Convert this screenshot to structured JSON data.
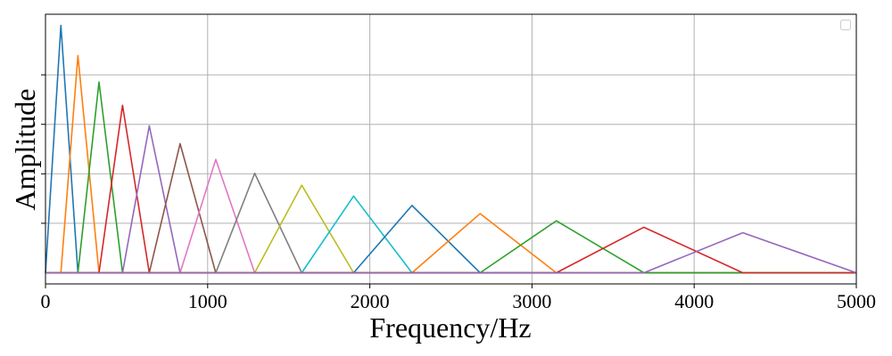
{
  "chart_data": {
    "type": "line",
    "title": "",
    "xlabel": "Frequency/Hz",
    "ylabel": "Amplitude",
    "xlim": [
      0,
      5000
    ],
    "ylim": [
      -0.045,
      1.045
    ],
    "xticks": [
      0,
      1000,
      2000,
      3000,
      4000,
      5000
    ],
    "yticks": [
      0.2,
      0.4,
      0.6,
      0.8
    ],
    "y_tick_labels_visible": false,
    "grid": true,
    "legend": {
      "placement": "top-right",
      "entries": []
    },
    "colors": [
      "#1f77b4",
      "#ff7f0e",
      "#2ca02c",
      "#d62728",
      "#9467bd",
      "#8c564b",
      "#e377c2",
      "#7f7f7f",
      "#bcbd22",
      "#17becf"
    ],
    "series": [
      {
        "x": [
          0,
          95,
          200,
          5000
        ],
        "y": [
          0,
          1.0,
          0,
          0
        ]
      },
      {
        "x": [
          0,
          95,
          200,
          330,
          5000
        ],
        "y": [
          0,
          0,
          0.878,
          0,
          0
        ]
      },
      {
        "x": [
          0,
          200,
          330,
          475,
          5000
        ],
        "y": [
          0,
          0,
          0.771,
          0,
          0
        ]
      },
      {
        "x": [
          0,
          330,
          475,
          640,
          5000
        ],
        "y": [
          0,
          0,
          0.677,
          0,
          0
        ]
      },
      {
        "x": [
          0,
          475,
          640,
          830,
          5000
        ],
        "y": [
          0,
          0,
          0.594,
          0,
          0
        ]
      },
      {
        "x": [
          0,
          640,
          830,
          1050,
          5000
        ],
        "y": [
          0,
          0,
          0.522,
          0,
          0
        ]
      },
      {
        "x": [
          0,
          830,
          1050,
          1290,
          5000
        ],
        "y": [
          0,
          0,
          0.458,
          0,
          0
        ]
      },
      {
        "x": [
          0,
          1050,
          1290,
          1580,
          5000
        ],
        "y": [
          0,
          0,
          0.402,
          0,
          0
        ]
      },
      {
        "x": [
          0,
          1290,
          1580,
          1900,
          5000
        ],
        "y": [
          0,
          0,
          0.354,
          0,
          0
        ]
      },
      {
        "x": [
          0,
          1580,
          1900,
          2260,
          5000
        ],
        "y": [
          0,
          0,
          0.31,
          0,
          0
        ]
      },
      {
        "x": [
          0,
          1900,
          2260,
          2680,
          5000
        ],
        "y": [
          0,
          0,
          0.272,
          0,
          0
        ]
      },
      {
        "x": [
          0,
          2260,
          2680,
          3150,
          5000
        ],
        "y": [
          0,
          0,
          0.239,
          0,
          0
        ]
      },
      {
        "x": [
          0,
          2680,
          3150,
          3690,
          5000
        ],
        "y": [
          0,
          0,
          0.21,
          0,
          0
        ]
      },
      {
        "x": [
          0,
          3150,
          3690,
          4300,
          5000
        ],
        "y": [
          0,
          0,
          0.184,
          0,
          0
        ]
      },
      {
        "x": [
          0,
          3690,
          4300,
          5000
        ],
        "y": [
          0,
          0,
          0.162,
          0
        ]
      }
    ]
  }
}
